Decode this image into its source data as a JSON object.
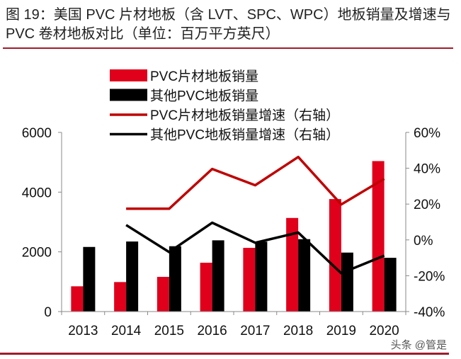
{
  "title": "图 19：美国 PVC 片材地板（含 LVT、SPC、WPC）地板销量及增速与 PVC 卷材地板对比（单位：百万平方英尺）",
  "watermark": "头条 @管是",
  "colors": {
    "red": "#e0001b",
    "black": "#000000",
    "red_line": "#c00000",
    "rule": "#a01c2c"
  },
  "chart_data": {
    "type": "bar+line",
    "categories": [
      "2013",
      "2014",
      "2015",
      "2016",
      "2017",
      "2018",
      "2019",
      "2020"
    ],
    "left_axis": {
      "ylim": [
        0,
        6000
      ],
      "ticks": [
        "0",
        "2000",
        "4000",
        "6000"
      ]
    },
    "right_axis": {
      "ylim": [
        -40,
        60
      ],
      "ticks": [
        "-40%",
        "-20%",
        "0%",
        "20%",
        "40%",
        "60%"
      ]
    },
    "series": [
      {
        "name": "PVC片材地板销量",
        "type": "bar",
        "axis": "left",
        "color": "#e0001b",
        "values": [
          846,
          988,
          1161,
          1635,
          2133,
          3135,
          3768,
          5040
        ]
      },
      {
        "name": "其他PVC地板销量",
        "type": "bar",
        "axis": "left",
        "color": "#000000",
        "values": [
          2164,
          2346,
          2188,
          2386,
          2340,
          2425,
          1975,
          1800
        ]
      },
      {
        "name": "PVC片材地板销量增速（右轴）",
        "type": "line",
        "axis": "right",
        "color": "#c00000",
        "values": [
          null,
          17.4,
          17.4,
          39.6,
          30.5,
          46.3,
          19.8,
          34.1
        ]
      },
      {
        "name": "其他PVC地板销量增速（右轴）",
        "type": "line",
        "axis": "right",
        "color": "#000000",
        "values": [
          null,
          8.3,
          -6.8,
          9.6,
          -1.6,
          4.1,
          -18.6,
          -8.8
        ]
      }
    ],
    "legend": "top-center",
    "grid": false
  }
}
